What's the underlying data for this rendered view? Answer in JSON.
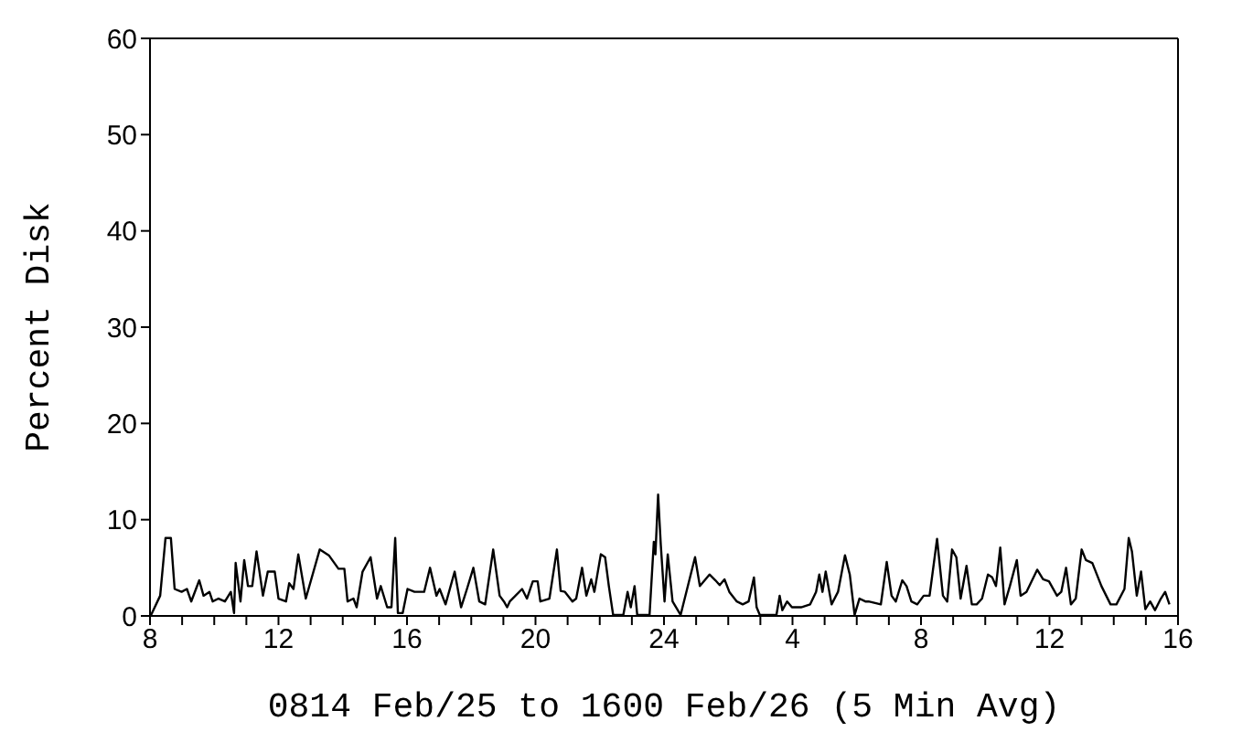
{
  "chart_data": {
    "type": "line",
    "xlabel": "0814 Feb/25 to 1600 Feb/26 (5 Min Avg)",
    "ylabel": "Percent Disk",
    "xlim": [
      "--02-25T08:00",
      "--02-26T16:00"
    ],
    "xticks": [
      {
        "value": "--02-25T08:00",
        "label": "8"
      },
      {
        "value": "--02-25T09:00",
        "label": null
      },
      {
        "value": "--02-25T10:00",
        "label": null
      },
      {
        "value": "--02-25T11:00",
        "label": null
      },
      {
        "value": "--02-25T12:00",
        "label": "12"
      },
      {
        "value": "--02-25T13:00",
        "label": null
      },
      {
        "value": "--02-25T14:00",
        "label": null
      },
      {
        "value": "--02-25T15:00",
        "label": null
      },
      {
        "value": "--02-25T16:00",
        "label": "16"
      },
      {
        "value": "--02-25T17:00",
        "label": null
      },
      {
        "value": "--02-25T18:00",
        "label": null
      },
      {
        "value": "--02-25T19:00",
        "label": null
      },
      {
        "value": "--02-25T20:00",
        "label": "20"
      },
      {
        "value": "--02-25T21:00",
        "label": null
      },
      {
        "value": "--02-25T22:00",
        "label": null
      },
      {
        "value": "--02-25T23:00",
        "label": null
      },
      {
        "value": "--02-26T00:00",
        "label": "24"
      },
      {
        "value": "--02-26T01:00",
        "label": null
      },
      {
        "value": "--02-26T02:00",
        "label": null
      },
      {
        "value": "--02-26T03:00",
        "label": null
      },
      {
        "value": "--02-26T04:00",
        "label": "4"
      },
      {
        "value": "--02-26T05:00",
        "label": null
      },
      {
        "value": "--02-26T06:00",
        "label": null
      },
      {
        "value": "--02-26T07:00",
        "label": null
      },
      {
        "value": "--02-26T08:00",
        "label": "8"
      },
      {
        "value": "--02-26T09:00",
        "label": null
      },
      {
        "value": "--02-26T10:00",
        "label": null
      },
      {
        "value": "--02-26T11:00",
        "label": null
      },
      {
        "value": "--02-26T12:00",
        "label": "12"
      },
      {
        "value": "--02-26T13:00",
        "label": null
      },
      {
        "value": "--02-26T14:00",
        "label": null
      },
      {
        "value": "--02-26T15:00",
        "label": null
      },
      {
        "value": "--02-26T16:00",
        "label": "16"
      }
    ],
    "ylim": [
      0,
      60
    ],
    "yticks": [
      0,
      10,
      20,
      30,
      40,
      50,
      60
    ],
    "x": [
      "--02-25T08:02",
      "--02-25T08:19",
      "--02-25T08:29",
      "--02-25T08:39",
      "--02-25T08:46",
      "--02-25T08:59",
      "--02-25T09:09",
      "--02-25T09:17",
      "--02-25T09:32",
      "--02-25T09:40",
      "--02-25T09:51",
      "--02-25T09:57",
      "--02-25T10:08",
      "--02-25T10:20",
      "--02-25T10:31",
      "--02-25T10:37",
      "--02-25T10:40",
      "--02-25T10:49",
      "--02-25T10:56",
      "--02-25T11:03",
      "--02-25T11:11",
      "--02-25T11:19",
      "--02-25T11:31",
      "--02-25T11:40",
      "--02-25T11:53",
      "--02-25T12:00",
      "--02-25T12:14",
      "--02-25T12:20",
      "--02-25T12:28",
      "--02-25T12:37",
      "--02-25T12:51",
      "--02-25T13:17",
      "--02-25T13:34",
      "--02-25T13:52",
      "--02-25T14:03",
      "--02-25T14:09",
      "--02-25T14:20",
      "--02-25T14:26",
      "--02-25T14:37",
      "--02-25T14:52",
      "--02-25T15:04",
      "--02-25T15:11",
      "--02-25T15:23",
      "--02-25T15:31",
      "--02-25T15:38",
      "--02-25T15:43",
      "--02-25T15:52",
      "--02-25T16:01",
      "--02-25T16:14",
      "--02-25T16:32",
      "--02-25T16:43",
      "--02-25T16:55",
      "--02-25T17:01",
      "--02-25T17:12",
      "--02-25T17:29",
      "--02-25T17:41",
      "--02-25T17:52",
      "--02-25T18:04",
      "--02-25T18:15",
      "--02-25T18:26",
      "--02-25T18:41",
      "--02-25T18:53",
      "--02-25T19:01",
      "--02-25T19:07",
      "--02-25T19:12",
      "--02-25T19:35",
      "--02-25T19:44",
      "--02-25T19:55",
      "--02-25T20:04",
      "--02-25T20:09",
      "--02-25T20:26",
      "--02-25T20:40",
      "--02-25T20:47",
      "--02-25T20:55",
      "--02-25T21:09",
      "--02-25T21:16",
      "--02-25T21:27",
      "--02-25T21:35",
      "--02-25T21:44",
      "--02-25T21:50",
      "--02-25T22:02",
      "--02-25T22:10",
      "--02-25T22:17",
      "--02-25T22:25",
      "--02-25T22:44",
      "--02-25T22:52",
      "--02-25T22:58",
      "--02-25T23:05",
      "--02-25T23:10",
      "--02-25T23:33",
      "--02-25T23:41",
      "--02-25T23:44",
      "--02-25T23:49",
      "--02-25T23:54",
      "--02-26T00:01",
      "--02-26T00:07",
      "--02-26T00:16",
      "--02-26T00:31",
      "--02-26T00:58",
      "--02-26T01:07",
      "--02-26T01:25",
      "--02-26T01:36",
      "--02-26T01:44",
      "--02-26T01:53",
      "--02-26T02:02",
      "--02-26T02:16",
      "--02-26T02:27",
      "--02-26T02:38",
      "--02-26T02:48",
      "--02-26T02:53",
      "--02-26T02:59",
      "--02-26T03:30",
      "--02-26T03:36",
      "--02-26T03:41",
      "--02-26T03:50",
      "--02-26T03:59",
      "--02-26T04:16",
      "--02-26T04:33",
      "--02-26T04:44",
      "--02-26T04:50",
      "--02-26T04:56",
      "--02-26T05:02",
      "--02-26T05:13",
      "--02-26T05:25",
      "--02-26T05:38",
      "--02-26T05:47",
      "--02-26T05:56",
      "--02-26T06:05",
      "--02-26T06:16",
      "--02-26T06:22",
      "--02-26T06:45",
      "--02-26T06:56",
      "--02-26T07:05",
      "--02-26T07:13",
      "--02-26T07:25",
      "--02-26T07:33",
      "--02-26T07:42",
      "--02-26T07:53",
      "--02-26T08:05",
      "--02-26T08:16",
      "--02-26T08:30",
      "--02-26T08:41",
      "--02-26T08:49",
      "--02-26T08:58",
      "--02-26T09:06",
      "--02-26T09:14",
      "--02-26T09:25",
      "--02-26T09:35",
      "--02-26T09:44",
      "--02-26T09:54",
      "--02-26T10:05",
      "--02-26T10:13",
      "--02-26T10:20",
      "--02-26T10:28",
      "--02-26T10:36",
      "--02-26T10:46",
      "--02-26T10:59",
      "--02-26T11:06",
      "--02-26T11:17",
      "--02-26T11:37",
      "--02-26T11:48",
      "--02-26T11:59",
      "--02-26T12:14",
      "--02-26T12:22",
      "--02-26T12:31",
      "--02-26T12:40",
      "--02-26T12:49",
      "--02-26T13:00",
      "--02-26T13:08",
      "--02-26T13:20",
      "--02-26T13:37",
      "--02-26T13:54",
      "--02-26T14:05",
      "--02-26T14:20",
      "--02-26T14:28",
      "--02-26T14:34",
      "--02-26T14:43",
      "--02-26T14:51",
      "--02-26T14:59",
      "--02-26T15:08",
      "--02-26T15:17",
      "--02-26T15:28",
      "--02-26T15:36",
      "--02-26T15:44"
    ],
    "series": [
      {
        "color": "#000000",
        "values": [
          0.1,
          2.1,
          8.1,
          8.1,
          2.8,
          2.5,
          2.8,
          1.5,
          3.7,
          2.1,
          2.5,
          1.5,
          1.8,
          1.5,
          2.5,
          0.3,
          5.5,
          1.5,
          5.8,
          3.1,
          3.1,
          6.7,
          2.1,
          4.6,
          4.6,
          1.8,
          1.5,
          3.4,
          2.8,
          6.4,
          1.8,
          6.9,
          6.3,
          4.9,
          4.9,
          1.5,
          1.8,
          0.9,
          4.6,
          6.1,
          1.8,
          3.1,
          0.9,
          0.9,
          8.1,
          0.3,
          0.3,
          2.8,
          2.5,
          2.5,
          5.0,
          2.1,
          2.8,
          1.2,
          4.6,
          0.9,
          2.8,
          5.0,
          1.5,
          1.2,
          6.9,
          2.1,
          1.5,
          0.9,
          1.5,
          2.8,
          1.8,
          3.6,
          3.6,
          1.5,
          1.8,
          6.9,
          2.6,
          2.5,
          1.5,
          1.8,
          5.0,
          2.1,
          3.8,
          2.5,
          6.4,
          6.1,
          3.1,
          0.1,
          0.1,
          2.5,
          0.9,
          3.1,
          0.1,
          0.1,
          7.7,
          6.4,
          12.6,
          7.4,
          1.5,
          6.4,
          1.5,
          0.1,
          6.1,
          3.1,
          4.3,
          3.7,
          3.2,
          3.8,
          2.5,
          1.5,
          1.2,
          1.5,
          4.0,
          0.9,
          0.1,
          0.1,
          2.1,
          0.6,
          1.5,
          0.9,
          0.9,
          1.2,
          2.5,
          4.3,
          2.5,
          4.6,
          1.2,
          2.5,
          6.3,
          4.3,
          0.1,
          1.8,
          1.5,
          1.5,
          1.2,
          5.6,
          2.1,
          1.5,
          3.7,
          3.1,
          1.5,
          1.2,
          2.1,
          2.1,
          8.0,
          2.1,
          1.5,
          6.9,
          6.1,
          1.8,
          5.2,
          1.2,
          1.2,
          1.8,
          4.3,
          4.0,
          3.1,
          7.1,
          1.2,
          3.1,
          5.8,
          2.1,
          2.5,
          4.8,
          3.8,
          3.6,
          2.1,
          2.5,
          5.0,
          1.2,
          1.8,
          6.9,
          5.8,
          5.5,
          3.1,
          1.2,
          1.2,
          2.8,
          8.1,
          6.7,
          2.1,
          4.6,
          0.7,
          1.5,
          0.6,
          1.8,
          2.5,
          1.2
        ]
      }
    ]
  }
}
